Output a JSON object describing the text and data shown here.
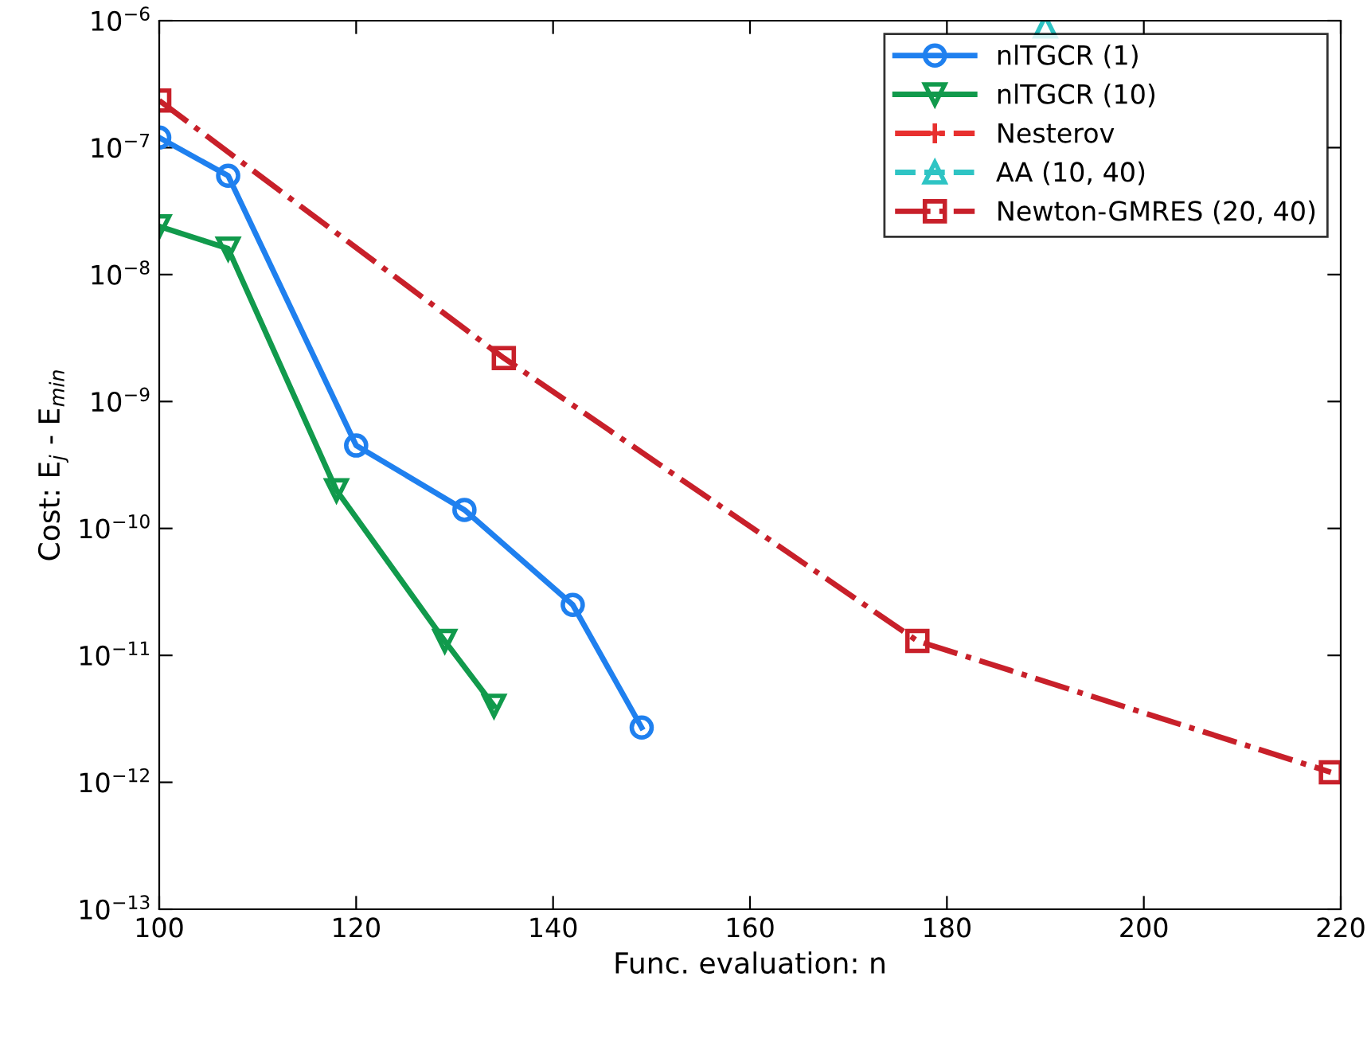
{
  "chart_data": {
    "type": "line",
    "xlabel": "Func. evaluation: n",
    "ylabel": "Cost: E$_{j}$ - E$_{min}$",
    "log": "y",
    "xlim": [
      100,
      220
    ],
    "xticks": [
      100,
      120,
      140,
      160,
      180,
      200,
      220
    ],
    "ylim": [
      1e-13,
      1e-06
    ],
    "yticks": [
      {
        "value": 1e-13,
        "label": "10$^{−13}$"
      },
      {
        "value": 1e-12,
        "label": "10$^{−12}$"
      },
      {
        "value": 1e-11,
        "label": "10$^{−11}$"
      },
      {
        "value": 1e-10,
        "label": "10$^{−10}$"
      },
      {
        "value": 1e-09,
        "label": "10$^{−9}$"
      },
      {
        "value": 1e-08,
        "label": "10$^{−8}$"
      },
      {
        "value": 1e-07,
        "label": "10$^{−7}$"
      },
      {
        "value": 1e-06,
        "label": "10$^{−6}$"
      }
    ],
    "grid": false,
    "legend": "top right",
    "series": [
      {
        "name": "nlTGCR (1)",
        "color": "#1f80ef",
        "marker": "circle",
        "line_style": "solid",
        "x": [
          100,
          107,
          120,
          131,
          142,
          149
        ],
        "values": [
          1.2e-07,
          6e-08,
          4.5e-10,
          1.4e-10,
          2.5e-11,
          2.7e-12
        ]
      },
      {
        "name": "nlTGCR (10)",
        "color": "#119a4c",
        "marker": "triangle",
        "line_style": "solid",
        "x": [
          100,
          107,
          118,
          129,
          134
        ],
        "values": [
          2.4e-08,
          1.6e-08,
          2e-10,
          1.3e-11,
          4e-12
        ]
      },
      {
        "name": "Nesterov",
        "color": "#e8302f",
        "marker": "cross",
        "line_style": "dashdot"
      },
      {
        "name": "AA (10, 40)",
        "color": "#2ec4c4",
        "marker": "triangle_up",
        "line_style": "dashed",
        "x": [
          190
        ],
        "values": [
          9e-07
        ]
      },
      {
        "name": "Newton-GMRES (20, 40)",
        "color": "#c8202a",
        "marker": "square",
        "line_style": "dashdot",
        "x": [
          100,
          135,
          177,
          219
        ],
        "values": [
          2.35e-07,
          2.2e-09,
          1.3e-11,
          1.2e-12
        ]
      }
    ]
  }
}
